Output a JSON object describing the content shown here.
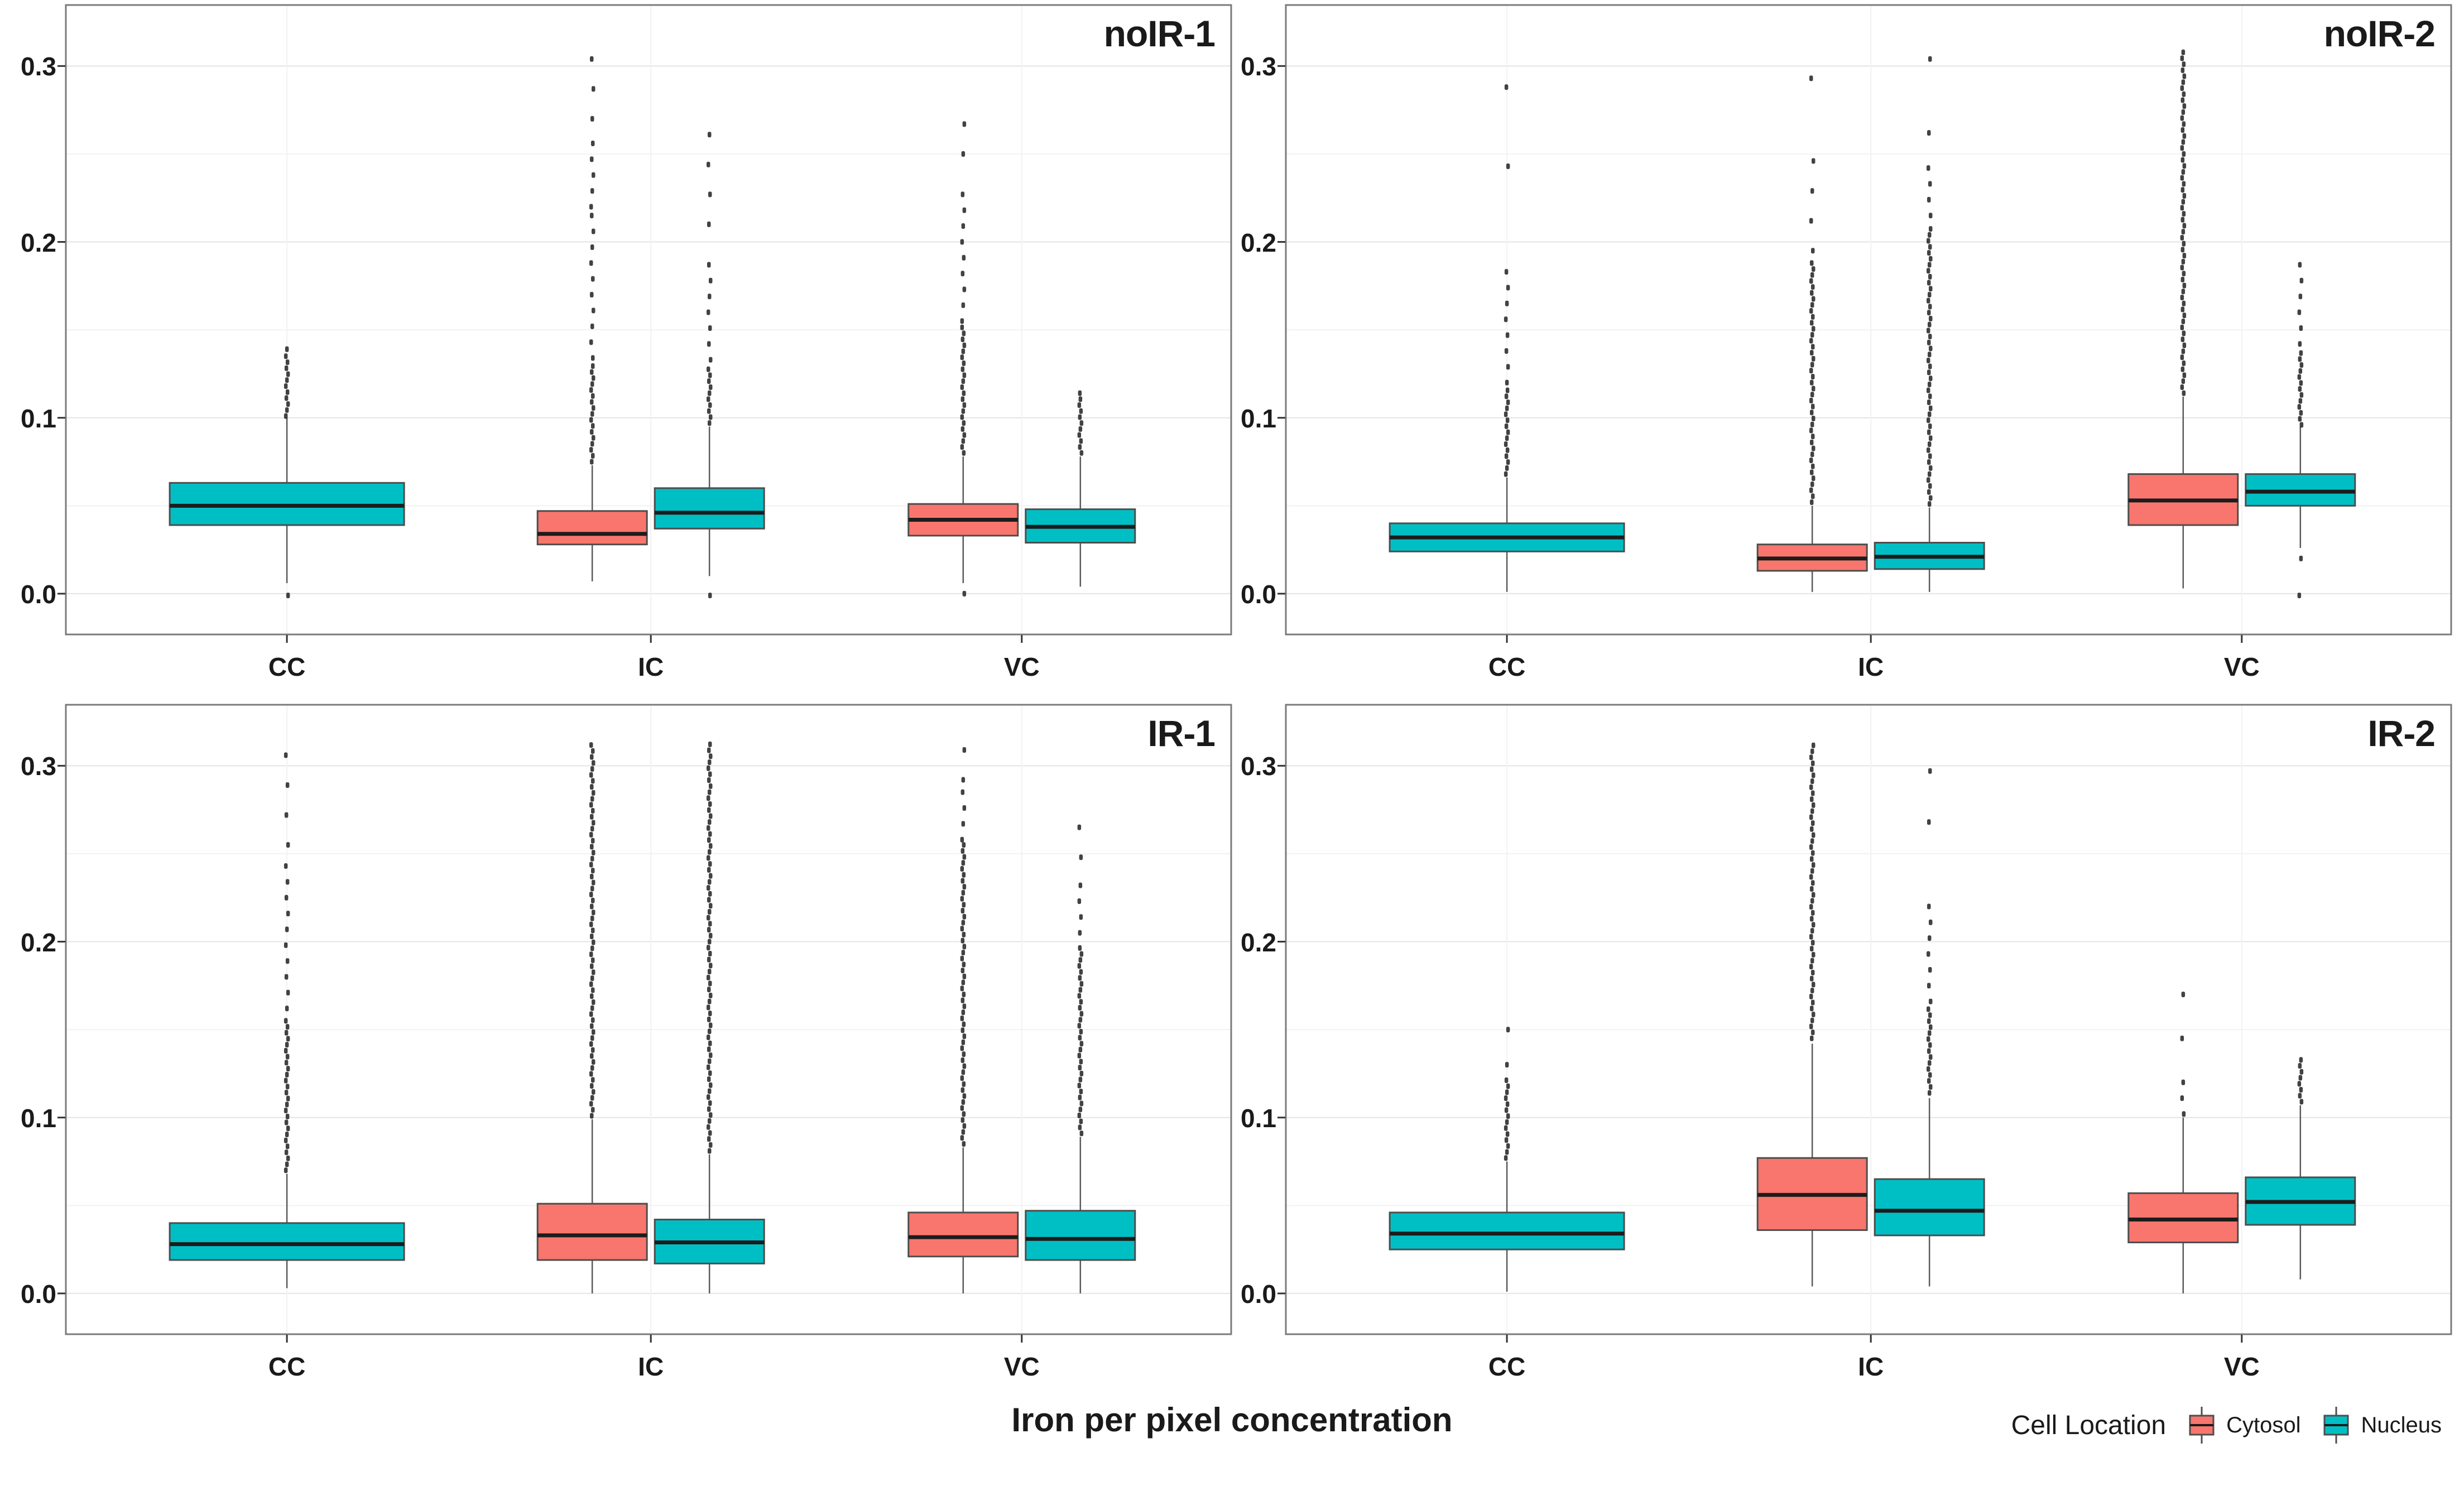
{
  "figure": {
    "title_x": "Iron per pixel concentration"
  },
  "legend": {
    "title": "Cell Location",
    "items": [
      {
        "label": "Cytosol",
        "color": "#F8766D"
      },
      {
        "label": "Nucleus",
        "color": "#00BFC4"
      }
    ]
  },
  "axes": {
    "y_ticks": [
      "0.0",
      "0.1",
      "0.2",
      "0.3"
    ],
    "y_tick_values": [
      0.0,
      0.1,
      0.2,
      0.3
    ],
    "y_minor_values": [
      0.05,
      0.15,
      0.25
    ],
    "ylim": [
      -0.0235,
      0.335
    ],
    "x_categories": [
      "CC",
      "IC",
      "VC"
    ]
  },
  "style": {
    "grid_major": "#e4e4e4",
    "grid_minor": "#f2f2f2",
    "panel_border": "#7b7b7b",
    "box_stroke": "#4d4d4d",
    "median_color": "#1c1c1c",
    "whisker_color": "#5a5a5a",
    "dot_color": "#2e2e2e",
    "text_color": "#1a1a1a"
  },
  "chart_data": {
    "type": "boxplot-grid",
    "ylabel_implied": "Iron per pixel concentration",
    "series_names": [
      "Cytosol",
      "Nucleus"
    ],
    "panels": [
      {
        "name": "noIR-1",
        "boxes": [
          {
            "category": "CC",
            "series": "Nucleus",
            "q1": 0.039,
            "median": 0.05,
            "q3": 0.063,
            "whisker_low": 0.006,
            "whisker_high": 0.1,
            "outliers": [
              {
                "from": 0.101,
                "to": 0.136,
                "density": "dense"
              },
              {
                "from": 0.139,
                "to": 0.147,
                "density": "sparse"
              },
              {
                "from": -0.001,
                "to": 0.004,
                "density": "sparse"
              }
            ]
          },
          {
            "category": "IC",
            "series": "Cytosol",
            "q1": 0.028,
            "median": 0.034,
            "q3": 0.047,
            "whisker_low": 0.007,
            "whisker_high": 0.073,
            "outliers": [
              {
                "from": 0.075,
                "to": 0.132,
                "density": "dense"
              },
              {
                "from": 0.134,
                "to": 0.215,
                "density": "medium"
              },
              {
                "from": 0.22,
                "to": 0.262,
                "density": "medium"
              },
              {
                "from": 0.27,
                "to": 0.312,
                "density": "sparse"
              }
            ]
          },
          {
            "category": "IC",
            "series": "Nucleus",
            "q1": 0.037,
            "median": 0.046,
            "q3": 0.06,
            "whisker_low": 0.01,
            "whisker_high": 0.095,
            "outliers": [
              {
                "from": 0.097,
                "to": 0.13,
                "density": "dense"
              },
              {
                "from": 0.133,
                "to": 0.19,
                "density": "medium"
              },
              {
                "from": 0.21,
                "to": 0.265,
                "density": "sparse"
              },
              {
                "from": -0.001,
                "to": 0.001,
                "density": "sparse"
              }
            ]
          },
          {
            "category": "VC",
            "series": "Cytosol",
            "q1": 0.033,
            "median": 0.042,
            "q3": 0.051,
            "whisker_low": 0.006,
            "whisker_high": 0.078,
            "outliers": [
              {
                "from": 0.08,
                "to": 0.152,
                "density": "dense"
              },
              {
                "from": 0.155,
                "to": 0.23,
                "density": "medium"
              },
              {
                "from": 0.25,
                "to": 0.283,
                "density": "sparse"
              },
              {
                "from": 0.0,
                "to": 0.003,
                "density": "sparse"
              }
            ]
          },
          {
            "category": "VC",
            "series": "Nucleus",
            "q1": 0.029,
            "median": 0.038,
            "q3": 0.048,
            "whisker_low": 0.004,
            "whisker_high": 0.078,
            "outliers": [
              {
                "from": 0.08,
                "to": 0.112,
                "density": "dense"
              },
              {
                "from": 0.114,
                "to": 0.123,
                "density": "sparse"
              }
            ]
          }
        ]
      },
      {
        "name": "noIR-2",
        "boxes": [
          {
            "category": "CC",
            "series": "Nucleus",
            "q1": 0.024,
            "median": 0.032,
            "q3": 0.04,
            "whisker_low": 0.001,
            "whisker_high": 0.066,
            "outliers": [
              {
                "from": 0.068,
                "to": 0.118,
                "density": "dense"
              },
              {
                "from": 0.12,
                "to": 0.19,
                "density": "medium"
              },
              {
                "from": 0.243,
                "to": 0.247,
                "density": "sparse"
              },
              {
                "from": 0.288,
                "to": 0.302,
                "density": "sparse"
              }
            ]
          },
          {
            "category": "IC",
            "series": "Cytosol",
            "q1": 0.013,
            "median": 0.02,
            "q3": 0.028,
            "whisker_low": 0.001,
            "whisker_high": 0.05,
            "outliers": [
              {
                "from": 0.052,
                "to": 0.19,
                "density": "dense"
              },
              {
                "from": 0.195,
                "to": 0.247,
                "density": "sparse"
              },
              {
                "from": 0.293,
                "to": 0.3,
                "density": "sparse"
              }
            ]
          },
          {
            "category": "IC",
            "series": "Nucleus",
            "q1": 0.014,
            "median": 0.021,
            "q3": 0.029,
            "whisker_low": 0.001,
            "whisker_high": 0.049,
            "outliers": [
              {
                "from": 0.051,
                "to": 0.21,
                "density": "dense"
              },
              {
                "from": 0.215,
                "to": 0.247,
                "density": "medium"
              },
              {
                "from": 0.262,
                "to": 0.277,
                "density": "sparse"
              },
              {
                "from": 0.304,
                "to": 0.306,
                "density": "sparse"
              }
            ]
          },
          {
            "category": "VC",
            "series": "Cytosol",
            "q1": 0.039,
            "median": 0.053,
            "q3": 0.068,
            "whisker_low": 0.003,
            "whisker_high": 0.112,
            "outliers": [
              {
                "from": 0.114,
                "to": 0.31,
                "density": "dense"
              }
            ]
          },
          {
            "category": "VC",
            "series": "Nucleus",
            "q1": 0.05,
            "median": 0.058,
            "q3": 0.068,
            "whisker_low": 0.026,
            "whisker_high": 0.095,
            "outliers": [
              {
                "from": 0.096,
                "to": 0.138,
                "density": "dense"
              },
              {
                "from": 0.142,
                "to": 0.19,
                "density": "medium"
              },
              {
                "from": 0.02,
                "to": 0.024,
                "density": "sparse"
              },
              {
                "from": -0.001,
                "to": 0.001,
                "density": "sparse"
              }
            ]
          }
        ]
      },
      {
        "name": "IR-1",
        "boxes": [
          {
            "category": "CC",
            "series": "Nucleus",
            "q1": 0.019,
            "median": 0.028,
            "q3": 0.04,
            "whisker_low": 0.003,
            "whisker_high": 0.068,
            "outliers": [
              {
                "from": 0.07,
                "to": 0.158,
                "density": "dense"
              },
              {
                "from": 0.162,
                "to": 0.25,
                "density": "medium"
              },
              {
                "from": 0.255,
                "to": 0.31,
                "density": "sparse"
              }
            ]
          },
          {
            "category": "IC",
            "series": "Cytosol",
            "q1": 0.019,
            "median": 0.033,
            "q3": 0.051,
            "whisker_low": 0.0,
            "whisker_high": 0.099,
            "outliers": [
              {
                "from": 0.101,
                "to": 0.315,
                "density": "dense"
              }
            ]
          },
          {
            "category": "IC",
            "series": "Nucleus",
            "q1": 0.017,
            "median": 0.029,
            "q3": 0.042,
            "whisker_low": 0.0,
            "whisker_high": 0.079,
            "outliers": [
              {
                "from": 0.081,
                "to": 0.313,
                "density": "dense"
              }
            ]
          },
          {
            "category": "VC",
            "series": "Cytosol",
            "q1": 0.021,
            "median": 0.032,
            "q3": 0.046,
            "whisker_low": 0.0,
            "whisker_high": 0.083,
            "outliers": [
              {
                "from": 0.085,
                "to": 0.255,
                "density": "dense"
              },
              {
                "from": 0.258,
                "to": 0.29,
                "density": "medium"
              },
              {
                "from": 0.292,
                "to": 0.312,
                "density": "sparse"
              }
            ]
          },
          {
            "category": "VC",
            "series": "Nucleus",
            "q1": 0.019,
            "median": 0.031,
            "q3": 0.047,
            "whisker_low": 0.0,
            "whisker_high": 0.089,
            "outliers": [
              {
                "from": 0.091,
                "to": 0.198,
                "density": "dense"
              },
              {
                "from": 0.205,
                "to": 0.238,
                "density": "medium"
              },
              {
                "from": 0.248,
                "to": 0.272,
                "density": "sparse"
              }
            ]
          }
        ]
      },
      {
        "name": "IR-2",
        "boxes": [
          {
            "category": "CC",
            "series": "Nucleus",
            "q1": 0.025,
            "median": 0.034,
            "q3": 0.046,
            "whisker_low": 0.001,
            "whisker_high": 0.075,
            "outliers": [
              {
                "from": 0.077,
                "to": 0.122,
                "density": "dense"
              },
              {
                "from": 0.13,
                "to": 0.143,
                "density": "sparse"
              },
              {
                "from": 0.15,
                "to": 0.165,
                "density": "sparse"
              }
            ]
          },
          {
            "category": "IC",
            "series": "Cytosol",
            "q1": 0.036,
            "median": 0.056,
            "q3": 0.077,
            "whisker_low": 0.004,
            "whisker_high": 0.142,
            "outliers": [
              {
                "from": 0.145,
                "to": 0.312,
                "density": "dense"
              }
            ]
          },
          {
            "category": "IC",
            "series": "Nucleus",
            "q1": 0.033,
            "median": 0.047,
            "q3": 0.065,
            "whisker_low": 0.004,
            "whisker_high": 0.111,
            "outliers": [
              {
                "from": 0.114,
                "to": 0.162,
                "density": "dense"
              },
              {
                "from": 0.166,
                "to": 0.228,
                "density": "medium"
              },
              {
                "from": 0.268,
                "to": 0.281,
                "density": "sparse"
              },
              {
                "from": 0.297,
                "to": 0.299,
                "density": "sparse"
              }
            ]
          },
          {
            "category": "VC",
            "series": "Cytosol",
            "q1": 0.029,
            "median": 0.042,
            "q3": 0.057,
            "whisker_low": 0.0,
            "whisker_high": 0.1,
            "outliers": [
              {
                "from": 0.102,
                "to": 0.126,
                "density": "medium"
              },
              {
                "from": 0.145,
                "to": 0.147,
                "density": "sparse"
              },
              {
                "from": 0.17,
                "to": 0.172,
                "density": "sparse"
              }
            ]
          },
          {
            "category": "VC",
            "series": "Nucleus",
            "q1": 0.039,
            "median": 0.052,
            "q3": 0.066,
            "whisker_low": 0.008,
            "whisker_high": 0.107,
            "outliers": [
              {
                "from": 0.109,
                "to": 0.136,
                "density": "dense"
              }
            ]
          }
        ]
      }
    ]
  }
}
